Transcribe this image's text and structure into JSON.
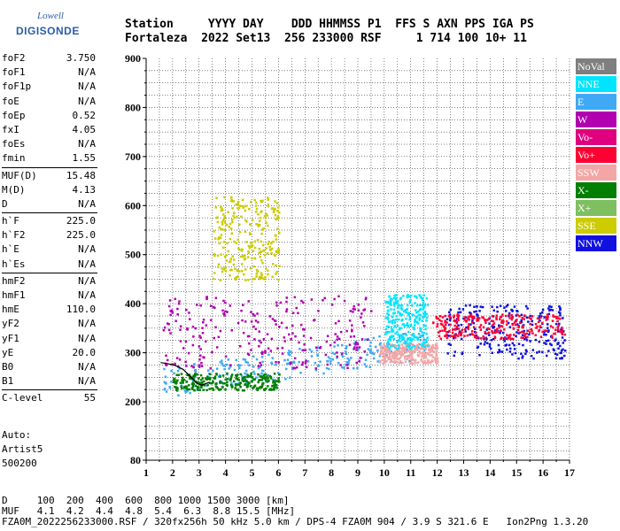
{
  "logo": {
    "top": "Lowell",
    "brand": "DIGISONDE"
  },
  "header": {
    "line1": "Station     YYYY DAY    DDD HHMMSS P1  FFS S AXN PPS IGA PS",
    "line2": "Fortaleza  2022 Set13  256 233000 RSF     1 714 100 10+ 11"
  },
  "params": [
    {
      "label": "foF2",
      "value": "3.750"
    },
    {
      "label": "foF1",
      "value": "N/A"
    },
    {
      "label": "foF1p",
      "value": "N/A"
    },
    {
      "label": "foE",
      "value": "N/A"
    },
    {
      "label": "foEp",
      "value": "0.52"
    },
    {
      "label": "fxI",
      "value": "4.05"
    },
    {
      "label": "foEs",
      "value": "N/A"
    },
    {
      "label": "fmin",
      "value": "1.55"
    },
    {
      "sep": true
    },
    {
      "label": "MUF(D)",
      "value": "15.48"
    },
    {
      "label": "M(D)",
      "value": "4.13"
    },
    {
      "label": "D",
      "value": "N/A"
    },
    {
      "sep": true
    },
    {
      "label": "h`F",
      "value": "225.0"
    },
    {
      "label": "h`F2",
      "value": "225.0"
    },
    {
      "label": "h`E",
      "value": "N/A"
    },
    {
      "label": "h`Es",
      "value": "N/A"
    },
    {
      "sep": true
    },
    {
      "label": "hmF2",
      "value": "N/A"
    },
    {
      "label": "hmF1",
      "value": "N/A"
    },
    {
      "label": "hmE",
      "value": "110.0"
    },
    {
      "label": "yF2",
      "value": "N/A"
    },
    {
      "label": "yF1",
      "value": "N/A"
    },
    {
      "label": "yE",
      "value": "20.0"
    },
    {
      "label": "B0",
      "value": "N/A"
    },
    {
      "label": "B1",
      "value": "N/A"
    },
    {
      "sep": true
    },
    {
      "label": "C-level",
      "value": "55"
    }
  ],
  "auto": {
    "line1": "Auto:",
    "line2": "Artist5",
    "line3": "500200"
  },
  "legend": [
    {
      "label": "NoVal",
      "color": "#7f7f7f"
    },
    {
      "label": "NNE",
      "color": "#00e5ff"
    },
    {
      "label": "E",
      "color": "#3fa9f5"
    },
    {
      "label": "W",
      "color": "#b000b0"
    },
    {
      "label": "Vo-",
      "color": "#e0007f"
    },
    {
      "label": "Vo+",
      "color": "#ff0033"
    },
    {
      "label": "SSW",
      "color": "#f4a6a6"
    },
    {
      "label": "X-",
      "color": "#007f00"
    },
    {
      "label": "X+",
      "color": "#7fbf5f"
    },
    {
      "label": "SSE",
      "color": "#cccc00"
    },
    {
      "label": "NNW",
      "color": "#1010e0"
    }
  ],
  "bottom": {
    "line1": "D     100  200  400  600  800 1000 1500 3000 [km]",
    "line2": "MUF   4.1  4.2  4.4  4.8  5.4  6.3  8.8 15.5 [MHz]",
    "line3": "FZA0M_2022256233000.RSF / 320fx256h 50 kHz 5.0 km / DPS-4 FZA0M 904 / 3.9 S 321.6 E   Ion2Png 1.3.20"
  },
  "chart_data": {
    "type": "scatter",
    "xlabel": "",
    "ylabel": "",
    "xlim": [
      1,
      17
    ],
    "ylim": [
      80,
      900
    ],
    "xticks": [
      1,
      2,
      3,
      4,
      5,
      6,
      7,
      8,
      9,
      10,
      11,
      12,
      13,
      14,
      15,
      16,
      17
    ],
    "yticks": [
      80,
      200,
      300,
      400,
      500,
      600,
      700,
      800,
      900
    ],
    "grid": true,
    "trace": {
      "color": "#000000",
      "points": [
        [
          1.55,
          280
        ],
        [
          1.8,
          278
        ],
        [
          2.1,
          274
        ],
        [
          2.4,
          266
        ],
        [
          2.7,
          250
        ],
        [
          2.9,
          238
        ],
        [
          3.1,
          234
        ],
        [
          3.4,
          240
        ]
      ]
    },
    "clusters": [
      {
        "color": "#3fa9f5",
        "x": [
          1.6,
          11.5
        ],
        "y": [
          210,
          300
        ]
      },
      {
        "color": "#b000b0",
        "x": [
          1.6,
          9.5
        ],
        "y": [
          270,
          420
        ]
      },
      {
        "color": "#cccc00",
        "x": [
          3.5,
          6.0
        ],
        "y": [
          450,
          620
        ]
      },
      {
        "color": "#f4a6a6",
        "x": [
          9.8,
          12.0
        ],
        "y": [
          280,
          320
        ]
      },
      {
        "color": "#1010e0",
        "x": [
          12.3,
          16.8
        ],
        "y": [
          290,
          400
        ]
      },
      {
        "color": "#ff0033",
        "x": [
          11.8,
          16.8
        ],
        "y": [
          330,
          380
        ]
      },
      {
        "color": "#00e5ff",
        "x": [
          10.0,
          11.6
        ],
        "y": [
          310,
          420
        ]
      },
      {
        "color": "#007f00",
        "x": [
          2.0,
          6.0
        ],
        "y": [
          225,
          260
        ]
      }
    ]
  }
}
